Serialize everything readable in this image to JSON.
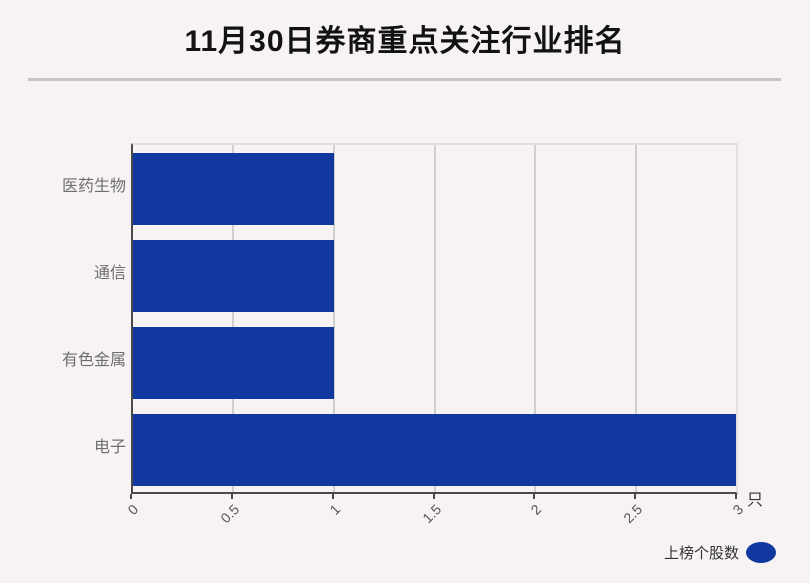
{
  "colors": {
    "background": "#F7F3F3",
    "bar": "#11389E",
    "grid": "#CFCFCF",
    "axis": "#4A4A4A",
    "plotBorder": "#E0E0E0",
    "divider": "#C6C4C4",
    "title": "#121212",
    "categoryLabel": "#6E6E6E",
    "tickLabel": "#555555",
    "legendText": "#333333"
  },
  "chart_data": {
    "type": "bar",
    "orientation": "horizontal",
    "title": "11月30日券商重点关注行业排名",
    "categories": [
      "医药生物",
      "通信",
      "有色金属",
      "电子"
    ],
    "values": [
      1,
      1,
      1,
      3
    ],
    "series_name": "上榜个股数",
    "xlabel": "只",
    "ylabel": "",
    "xlim": [
      0,
      3
    ],
    "xticks": [
      0,
      0.5,
      1,
      1.5,
      2,
      2.5,
      3
    ],
    "xtick_labels": [
      "0",
      "0.5",
      "1",
      "1.5",
      "2",
      "2.5",
      "3"
    ],
    "grid": true,
    "legend_position": "bottom-right"
  },
  "legend": {
    "label": "上榜个股数"
  },
  "axis": {
    "unit_label": "只"
  }
}
